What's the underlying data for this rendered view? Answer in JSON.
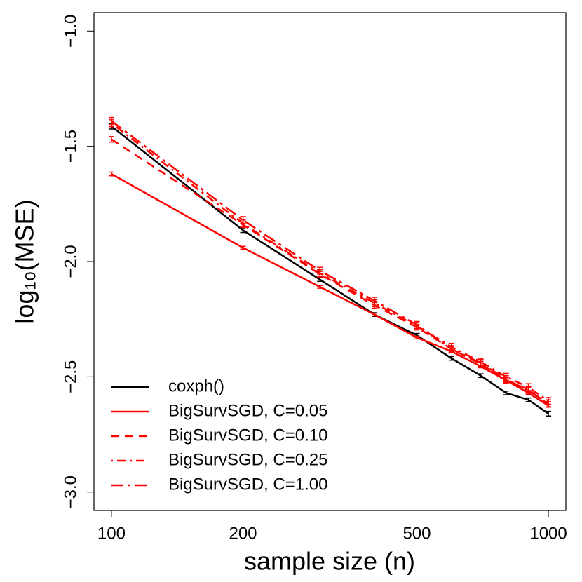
{
  "chart_data": {
    "type": "line",
    "xlabel": "sample size (n)",
    "ylabel": "log₁₀(MSE)",
    "xscale": "log",
    "x": [
      100,
      200,
      300,
      400,
      500,
      600,
      700,
      800,
      900,
      1000
    ],
    "xlim": [
      91.2,
      1096.5
    ],
    "ylim": [
      -3.08,
      -0.92
    ],
    "xticks": [
      100,
      200,
      500,
      1000
    ],
    "yticks": [
      {
        "value": -3.0,
        "label": "−3.0"
      },
      {
        "value": -2.5,
        "label": "−2.5"
      },
      {
        "value": -2.0,
        "label": "−2.0"
      },
      {
        "value": -1.5,
        "label": "−1.5"
      },
      {
        "value": -1.0,
        "label": "−1.0"
      }
    ],
    "legend": "bottom-left",
    "series": [
      {
        "name": "coxph()",
        "color": "#000000",
        "linestyle": "solid",
        "values": [
          -1.413,
          -1.864,
          -2.078,
          -2.23,
          -2.32,
          -2.42,
          -2.495,
          -2.57,
          -2.6,
          -2.66
        ],
        "errors": [
          0.012,
          0.01,
          0.008,
          0.008,
          0.008,
          0.008,
          0.008,
          0.008,
          0.008,
          0.01
        ]
      },
      {
        "name": "BigSurvSGD, C=0.05",
        "color": "#ff0000",
        "linestyle": "solid",
        "values": [
          -1.62,
          -1.94,
          -2.11,
          -2.23,
          -2.33,
          -2.39,
          -2.455,
          -2.515,
          -2.57,
          -2.625
        ],
        "errors": [
          0.008,
          0.006,
          0.006,
          0.006,
          0.006,
          0.006,
          0.006,
          0.006,
          0.006,
          0.006
        ]
      },
      {
        "name": "BigSurvSGD, C=0.10",
        "color": "#ff0000",
        "linestyle": "dashed",
        "values": [
          -1.47,
          -1.84,
          -2.055,
          -2.19,
          -2.285,
          -2.38,
          -2.445,
          -2.515,
          -2.555,
          -2.62
        ],
        "errors": [
          0.012,
          0.012,
          0.012,
          0.012,
          0.012,
          0.012,
          0.012,
          0.012,
          0.012,
          0.012
        ]
      },
      {
        "name": "BigSurvSGD, C=0.25",
        "color": "#ff0000",
        "linestyle": "dotdash",
        "values": [
          -1.4,
          -1.835,
          -2.05,
          -2.18,
          -2.28,
          -2.37,
          -2.435,
          -2.5,
          -2.545,
          -2.605
        ],
        "errors": [
          0.015,
          0.015,
          0.015,
          0.015,
          0.015,
          0.015,
          0.015,
          0.015,
          0.015,
          0.015
        ]
      },
      {
        "name": "BigSurvSGD, C=1.00",
        "color": "#ff0000",
        "linestyle": "twodash",
        "values": [
          -1.39,
          -1.82,
          -2.04,
          -2.17,
          -2.275,
          -2.38,
          -2.44,
          -2.51,
          -2.56,
          -2.615
        ],
        "errors": [
          0.015,
          0.015,
          0.015,
          0.015,
          0.015,
          0.015,
          0.015,
          0.015,
          0.015,
          0.015
        ]
      }
    ]
  }
}
